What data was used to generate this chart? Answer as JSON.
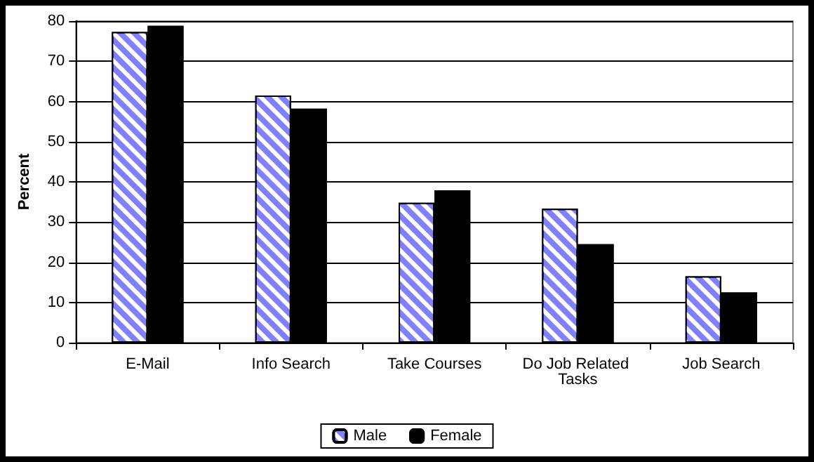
{
  "chart_data": {
    "type": "bar",
    "ylabel": "Percent",
    "categories": [
      "E-Mail",
      "Info Search",
      "Take Courses",
      "Do Job Related Tasks",
      "Job Search"
    ],
    "series": [
      {
        "name": "Male",
        "color": "#8080ff",
        "values": [
          77.3,
          61.5,
          34.8,
          33.3,
          16.5
        ]
      },
      {
        "name": "Female",
        "color": "#000000",
        "values": [
          78.8,
          58.2,
          37.9,
          24.5,
          12.5
        ]
      }
    ],
    "ylim": [
      0,
      80
    ],
    "yticks": [
      0,
      10,
      20,
      30,
      40,
      50,
      60,
      70,
      80
    ],
    "grid": "y",
    "legend": "bottom"
  }
}
